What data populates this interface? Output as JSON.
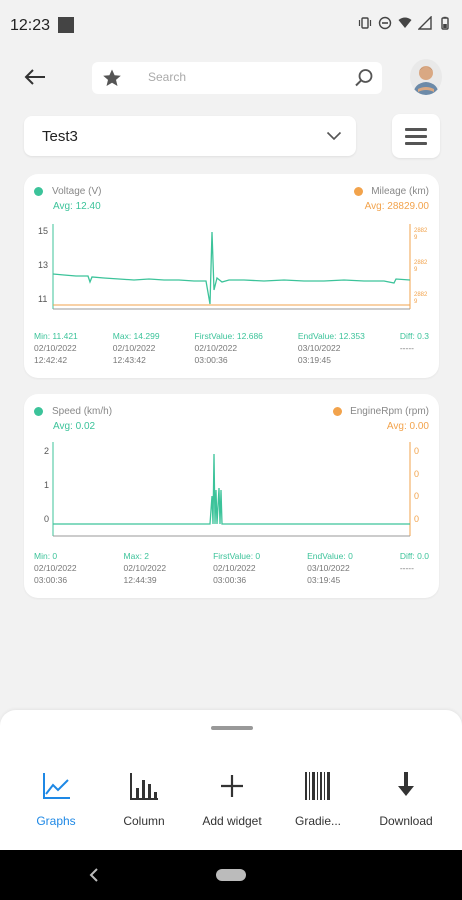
{
  "status_bar": {
    "time": "12:23"
  },
  "search": {
    "placeholder": "Search"
  },
  "selector": {
    "value": "Test3"
  },
  "colors": {
    "teal": "#3cc39a",
    "orange": "#f2a34c",
    "accent_blue": "#1e88e5"
  },
  "cards": [
    {
      "left_series": {
        "name": "Voltage (V)",
        "avg": "Avg: 12.40"
      },
      "right_series": {
        "name": "Mileage (km)",
        "avg": "Avg: 28829.00"
      },
      "y_ticks_left": [
        "15",
        "13",
        "11"
      ],
      "y_ticks_right": [
        "2882\n9",
        "2882\n9",
        "2882\n9"
      ],
      "stats": [
        {
          "label": "Min: 11.421",
          "date": "02/10/2022",
          "time": "12:42:42"
        },
        {
          "label": "Max: 14.299",
          "date": "02/10/2022",
          "time": "12:43:42"
        },
        {
          "label": "FirstValue: 12.686",
          "date": "02/10/2022",
          "time": "03:00:36"
        },
        {
          "label": "EndValue: 12.353",
          "date": "03/10/2022",
          "time": "03:19:45"
        },
        {
          "label": "Diff: 0.3",
          "date": "-----",
          "time": ""
        }
      ]
    },
    {
      "left_series": {
        "name": "Speed (km/h)",
        "avg": "Avg: 0.02"
      },
      "right_series": {
        "name": "EngineRpm (rpm)",
        "avg": "Avg: 0.00"
      },
      "y_ticks_left": [
        "2",
        "1",
        "0"
      ],
      "y_ticks_right": [
        "0",
        "0",
        "0",
        "0"
      ],
      "stats": [
        {
          "label": "Min: 0",
          "date": "02/10/2022",
          "time": "03:00:36"
        },
        {
          "label": "Max: 2",
          "date": "02/10/2022",
          "time": "12:44:39"
        },
        {
          "label": "FirstValue: 0",
          "date": "02/10/2022",
          "time": "03:00:36"
        },
        {
          "label": "EndValue: 0",
          "date": "03/10/2022",
          "time": "03:19:45"
        },
        {
          "label": "Diff: 0.0",
          "date": "-----",
          "time": ""
        }
      ]
    }
  ],
  "bottom_tabs": [
    {
      "label": "Graphs",
      "icon": "line-chart-icon",
      "active": true
    },
    {
      "label": "Column",
      "icon": "bar-chart-icon",
      "active": false
    },
    {
      "label": "Add widget",
      "icon": "plus-icon",
      "active": false
    },
    {
      "label": "Gradie...",
      "icon": "barcode-icon",
      "active": false
    },
    {
      "label": "Download",
      "icon": "download-icon",
      "active": false
    }
  ]
}
